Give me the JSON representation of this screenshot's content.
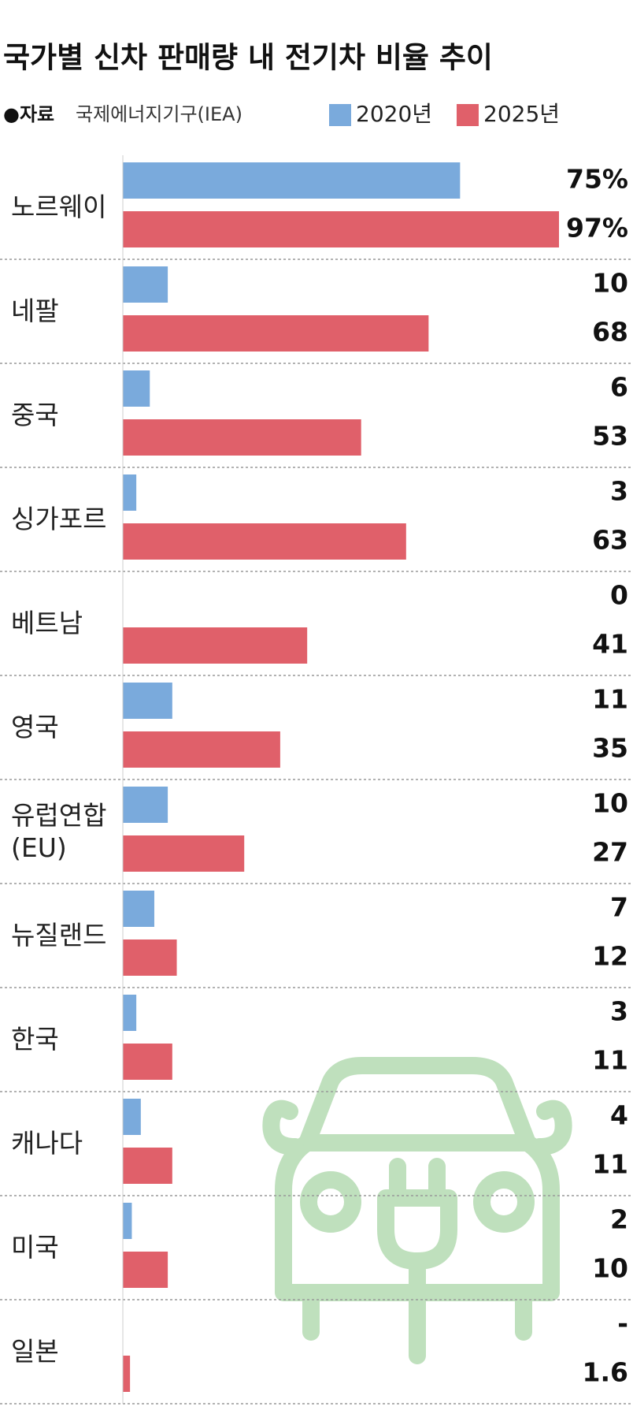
{
  "chart_data": {
    "type": "bar",
    "orientation": "horizontal",
    "title": "국가별 신차 판매량 내 전기차 비율 추이",
    "source_label": "●자료",
    "source": "국제에너지기구(IEA)",
    "categories": [
      "노르웨이",
      "네팔",
      "중국",
      "싱가포르",
      "베트남",
      "영국",
      "유럽연합\n(EU)",
      "뉴질랜드",
      "한국",
      "캐나다",
      "미국",
      "일본"
    ],
    "series": [
      {
        "name": "2020년",
        "color": "#7aaadc",
        "values": [
          75,
          10,
          6,
          3,
          0,
          11,
          10,
          7,
          3,
          4,
          2,
          null
        ],
        "value_labels": [
          "75%",
          "10",
          "6",
          "3",
          "0",
          "11",
          "10",
          "7",
          "3",
          "4",
          "2",
          "-"
        ]
      },
      {
        "name": "2025년",
        "color": "#e0606a",
        "values": [
          97,
          68,
          53,
          63,
          41,
          35,
          27,
          12,
          11,
          11,
          10,
          1.6
        ],
        "value_labels": [
          "97%",
          "68",
          "53",
          "63",
          "41",
          "35",
          "27",
          "12",
          "11",
          "11",
          "10",
          "1.6"
        ]
      }
    ]
  }
}
